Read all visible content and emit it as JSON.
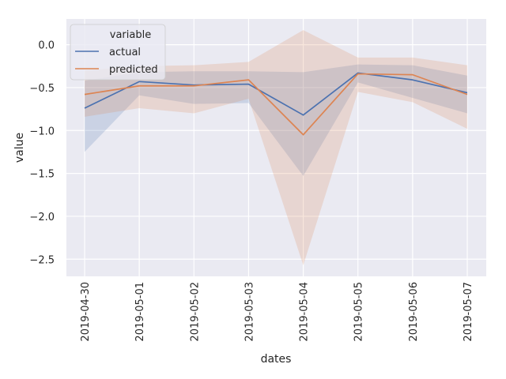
{
  "chart_data": {
    "type": "line",
    "x_dates": [
      "2019-04-30",
      "2019-05-01",
      "2019-05-02",
      "2019-05-03",
      "2019-05-04",
      "2019-05-05",
      "2019-05-06",
      "2019-05-07"
    ],
    "xlabel": "dates",
    "ylabel": "value",
    "ylim": [
      -2.7,
      0.3
    ],
    "yticks": [
      0.0,
      -0.5,
      -1.0,
      -1.5,
      -2.0,
      -2.5
    ],
    "ytick_labels": [
      "0.0",
      "−0.5",
      "−1.0",
      "−1.5",
      "−2.0",
      "−2.5"
    ],
    "grid": true,
    "legend": {
      "title": "variable",
      "placement": "top-left"
    },
    "series": [
      {
        "name": "actual",
        "color": "#4c72b0",
        "values": [
          -0.74,
          -0.43,
          -0.47,
          -0.46,
          -0.82,
          -0.33,
          -0.41,
          -0.56
        ],
        "ci_lower": [
          -1.25,
          -0.59,
          -0.69,
          -0.68,
          -1.53,
          -0.44,
          -0.62,
          -0.8
        ],
        "ci_upper": [
          -0.42,
          -0.32,
          -0.31,
          -0.31,
          -0.32,
          -0.23,
          -0.24,
          -0.36
        ]
      },
      {
        "name": "predicted",
        "color": "#dd8452",
        "values": [
          -0.58,
          -0.48,
          -0.48,
          -0.41,
          -1.05,
          -0.34,
          -0.35,
          -0.58
        ],
        "ci_lower": [
          -0.84,
          -0.74,
          -0.8,
          -0.63,
          -2.57,
          -0.55,
          -0.67,
          -0.98
        ],
        "ci_upper": [
          -0.3,
          -0.25,
          -0.24,
          -0.2,
          0.17,
          -0.15,
          -0.15,
          -0.24
        ]
      }
    ]
  }
}
